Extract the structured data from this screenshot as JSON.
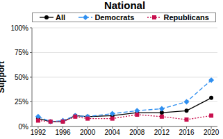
{
  "chart_data": {
    "type": "line",
    "title": "National",
    "y_label": "Support",
    "x": [
      1992,
      1994,
      1996,
      1998,
      2000,
      2004,
      2008,
      2012,
      2016,
      2020
    ],
    "series": [
      {
        "name": "All",
        "color": "#000000",
        "marker": "circle",
        "line_style": "solid",
        "values": [
          8,
          5,
          5,
          11,
          10,
          11,
          14,
          14,
          16,
          29
        ]
      },
      {
        "name": "Democrats",
        "color": "#2f8ff0",
        "marker": "diamond",
        "line_style": "dashed",
        "values": [
          10,
          5,
          6,
          11,
          10,
          13,
          16,
          18,
          25,
          47
        ]
      },
      {
        "name": "Republicans",
        "color": "#c8104e",
        "marker": "square",
        "line_style": "dotted",
        "values": [
          6,
          5,
          5,
          10,
          8,
          8,
          12,
          10,
          7,
          11
        ]
      }
    ],
    "xlim": [
      1991,
      2021
    ],
    "xticks": [
      1992,
      1996,
      2000,
      2004,
      2008,
      2012,
      2016,
      2020
    ],
    "ylim": [
      0,
      100
    ],
    "yticks": [
      {
        "value": 0,
        "label": "0%"
      },
      {
        "value": 25,
        "label": "25%"
      },
      {
        "value": 50,
        "label": "50%"
      },
      {
        "value": 75,
        "label": "75%"
      },
      {
        "value": 100,
        "label": "100%"
      }
    ],
    "grid": true,
    "legend": "top"
  }
}
